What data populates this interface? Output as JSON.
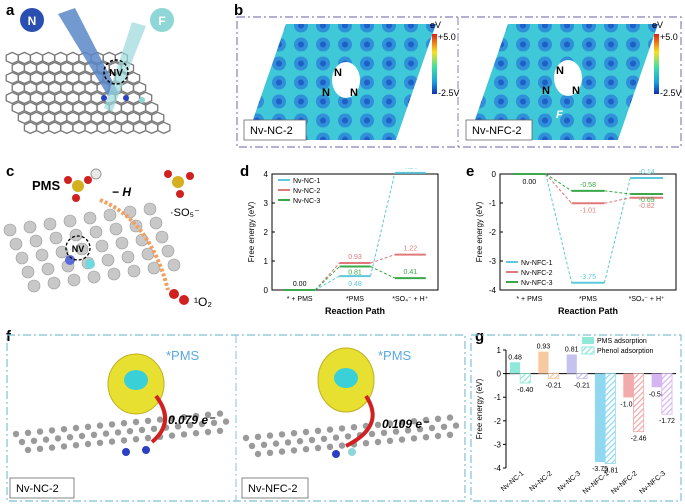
{
  "panels": {
    "a": {
      "letter": "a",
      "atom_n": "N",
      "atom_f": "F",
      "nv": "NV"
    },
    "b": {
      "letter": "b",
      "left_caption": "Nv-NC-2",
      "right_caption": "Nv-NFC-2",
      "scale_top": "+5.0",
      "scale_bottom": "-2.5V",
      "scale_unit": "eV",
      "atom_label": "N",
      "f_label": "F"
    },
    "c": {
      "letter": "c",
      "pms": "PMS",
      "h": "− H",
      "so5": "·SO₅⁻",
      "o2": "¹O₂",
      "nv": "NV"
    },
    "d": {
      "letter": "d"
    },
    "e": {
      "letter": "e"
    },
    "f": {
      "letter": "f",
      "left_caption": "Nv-NC-2",
      "right_caption": "Nv-NFC-2",
      "pms_left": "*PMS",
      "pms_right": "*PMS",
      "charge_left": "0.079 e⁻",
      "charge_right": "0.109 e⁻"
    },
    "g": {
      "letter": "g"
    }
  },
  "chart_data": [
    {
      "panel": "d",
      "type": "line",
      "xlabel": "Reaction Path",
      "ylabel": "Free energy (eV)",
      "categories": [
        "* + PMS",
        "*PMS",
        "*SO₄⁻ + H⁺"
      ],
      "ylim": [
        0,
        4
      ],
      "yticks": [
        0,
        1,
        2,
        3,
        4
      ],
      "series": [
        {
          "name": "Nv-NC-1",
          "color": "#5ec8dc",
          "values": [
            0.0,
            0.48,
            4.04
          ]
        },
        {
          "name": "Nv-NC-2",
          "color": "#e07a7a",
          "values": [
            0.0,
            0.93,
            1.22
          ]
        },
        {
          "name": "Nv-NC-3",
          "color": "#3aa84a",
          "values": [
            0.0,
            0.81,
            0.41
          ]
        }
      ],
      "value_labels": [
        "0.00",
        "0.48",
        "0.81",
        "0.93",
        "4.04",
        "1.22",
        "0.41"
      ]
    },
    {
      "panel": "e",
      "type": "line",
      "xlabel": "Reaction Path",
      "ylabel": "Free energy (eV)",
      "categories": [
        "* + PMS",
        "*PMS",
        "*SO₄⁻ + H⁺"
      ],
      "ylim": [
        -4,
        0
      ],
      "yticks": [
        0,
        -1,
        -2,
        -3,
        -4
      ],
      "series": [
        {
          "name": "Nv-NFC-1",
          "color": "#5ec8dc",
          "values": [
            0.0,
            -3.75,
            -0.14
          ]
        },
        {
          "name": "Nv-NFC-2",
          "color": "#e07a7a",
          "values": [
            0.0,
            -1.01,
            -0.82
          ]
        },
        {
          "name": "Nv-NFC-3",
          "color": "#3aa84a",
          "values": [
            0.0,
            -0.58,
            -0.69
          ]
        }
      ],
      "value_labels": [
        "0.00",
        "-0.58",
        "-1.01",
        "-3.75",
        "-0.14",
        "-0.69",
        "-0.82"
      ]
    },
    {
      "panel": "g",
      "type": "bar",
      "ylabel": "Free energy (eV)",
      "categories": [
        "Nv-NC-1",
        "Nv-NC-2",
        "Nv-NC-3",
        "Nv-NFC-1",
        "Nv-NFC-2",
        "Nv-NFC-3"
      ],
      "ylim": [
        -4,
        1
      ],
      "yticks": [
        1,
        0,
        -1,
        -2,
        -3,
        -4
      ],
      "series": [
        {
          "name": "PMS adsorption",
          "values": [
            0.48,
            0.93,
            0.81,
            -3.75,
            -1.01,
            -0.58
          ]
        },
        {
          "name": "Phenol adsorption",
          "values": [
            -0.4,
            -0.21,
            -0.21,
            -3.81,
            -2.46,
            -1.72
          ]
        }
      ],
      "colors": [
        "#8fe8d8",
        "#f7c9a0",
        "#c6c2f0",
        "#8fd8f0",
        "#f2aaaa",
        "#d6b6f2"
      ]
    }
  ]
}
